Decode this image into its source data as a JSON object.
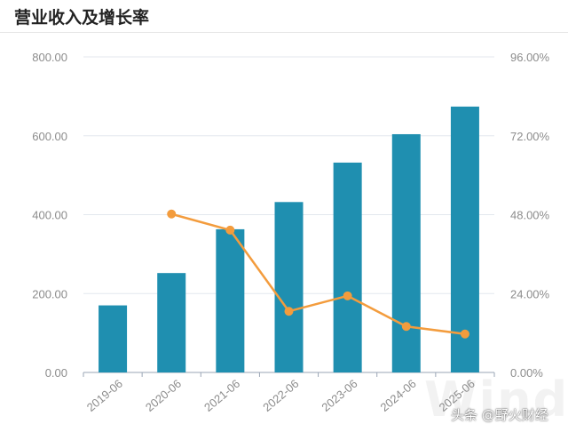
{
  "header": {
    "title": "营业收入及增长率"
  },
  "watermark": {
    "text": "头条 @野火财经",
    "ghost": "Wind"
  },
  "colors": {
    "bar": "#1f8fb0",
    "line": "#f39c3d",
    "grid": "#e3e7ee",
    "axis": "#9aa5b5"
  },
  "chart_data": {
    "type": "bar",
    "title": "营业收入及增长率",
    "categories": [
      "2019-06",
      "2020-06",
      "2021-06",
      "2022-06",
      "2023-06",
      "2024-06",
      "2025-06"
    ],
    "left_axis": {
      "ticks": [
        "0.00",
        "200.00",
        "400.00",
        "600.00",
        "800.00"
      ],
      "range": [
        0,
        800
      ]
    },
    "right_axis": {
      "ticks": [
        "0.00%",
        "24.00%",
        "48.00%",
        "72.00%",
        "96.00%"
      ],
      "range": [
        0,
        96
      ]
    },
    "series": [
      {
        "type": "bar",
        "axis": "left",
        "values": [
          170,
          252,
          363,
          432,
          532,
          604,
          674
        ]
      },
      {
        "type": "line",
        "axis": "right",
        "values": [
          null,
          48.2,
          43.3,
          18.6,
          23.3,
          14.0,
          11.7
        ]
      }
    ],
    "grid": true,
    "legend": "none"
  }
}
